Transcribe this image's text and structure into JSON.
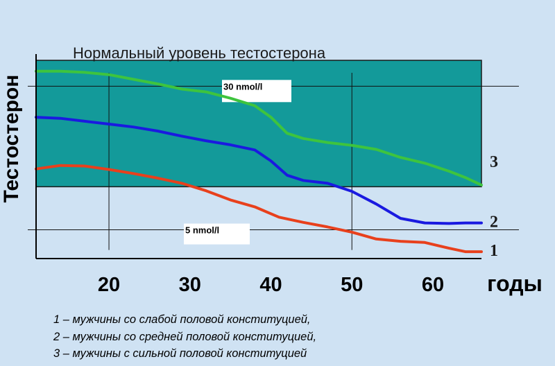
{
  "chart_data": {
    "type": "line",
    "title": "Нормальный уровень тестостерона",
    "ylabel": "Тестостерон",
    "xlabel": "годы",
    "categories": [
      "20",
      "30",
      "40",
      "50",
      "60"
    ],
    "xlim": [
      11,
      66
    ],
    "ylim": [
      0,
      38
    ],
    "normal_band": [
      12.5,
      34.5
    ],
    "reference_lines": [
      {
        "label": "30 nmol/l",
        "value": 30
      },
      {
        "label": "5 nmol/l",
        "value": 5
      }
    ],
    "series": [
      {
        "name": "1",
        "color": "#e8401c",
        "x": [
          11,
          14,
          17,
          20,
          23,
          26,
          29,
          32,
          35,
          38,
          41,
          44,
          47,
          50,
          53,
          56,
          59,
          62,
          64,
          66
        ],
        "y": [
          15.6,
          16.2,
          16.1,
          15.5,
          14.8,
          14.0,
          13.1,
          11.8,
          10.2,
          9.0,
          7.2,
          6.3,
          5.5,
          4.6,
          3.4,
          3.0,
          2.8,
          1.8,
          1.2,
          1.2
        ]
      },
      {
        "name": "2",
        "color": "#1a1ae0",
        "x": [
          11,
          14,
          17,
          20,
          23,
          26,
          29,
          32,
          35,
          38,
          40,
          42,
          44,
          47,
          50,
          53,
          56,
          59,
          62,
          64,
          66
        ],
        "y": [
          24.6,
          24.4,
          23.9,
          23.4,
          22.9,
          22.2,
          21.3,
          20.5,
          19.8,
          18.9,
          17.0,
          14.5,
          13.6,
          13.1,
          11.7,
          9.5,
          7.0,
          6.2,
          6.1,
          6.2,
          6.2
        ]
      },
      {
        "name": "3",
        "color": "#3ec43e",
        "x": [
          11,
          14,
          17,
          20,
          23,
          26,
          29,
          32,
          35,
          38,
          40,
          42,
          44,
          47,
          50,
          53,
          56,
          59,
          62,
          64,
          66
        ],
        "y": [
          32.6,
          32.6,
          32.4,
          32.0,
          31.2,
          30.4,
          29.5,
          29.0,
          27.9,
          26.6,
          24.6,
          21.8,
          20.9,
          20.2,
          19.7,
          19.0,
          17.6,
          16.6,
          15.2,
          14.1,
          12.8
        ]
      }
    ],
    "grid": false
  },
  "legend_lines": [
    "1 – мужчины со слабой половой конституцией,",
    "2 – мужчины со средней половой конституцией,",
    "3 – мужчины с сильной половой конституцией"
  ],
  "colors": {
    "background": "#cfe2f3",
    "band": "#139a9a"
  }
}
